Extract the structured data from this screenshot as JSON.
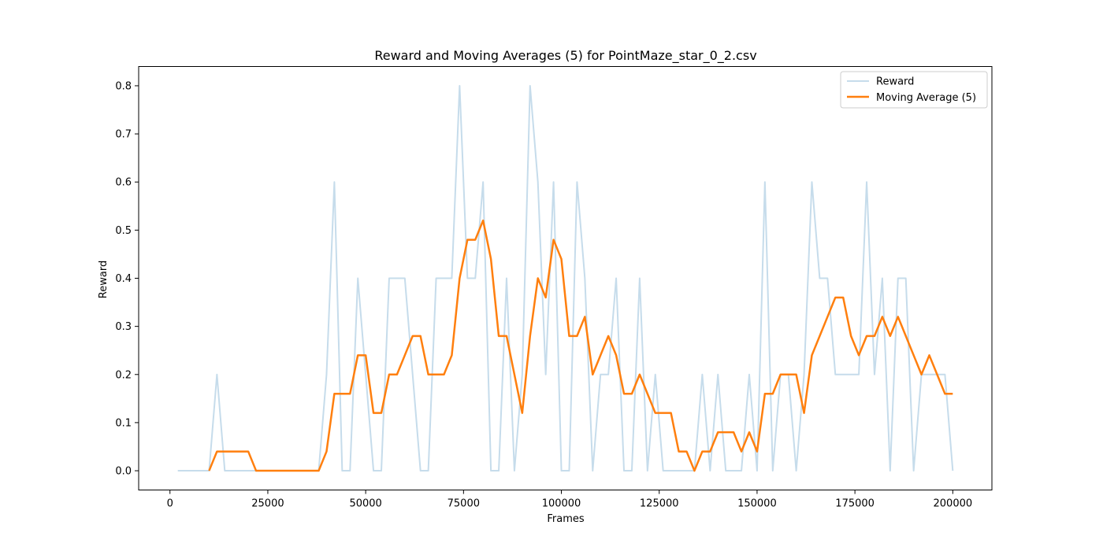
{
  "chart_data": {
    "type": "line",
    "title": "Reward and Moving Averages (5) for PointMaze_star_0_2.csv",
    "xlabel": "Frames",
    "ylabel": "Reward",
    "xlim": [
      -8000,
      210000
    ],
    "ylim": [
      -0.04,
      0.84
    ],
    "xticks": [
      0,
      25000,
      50000,
      75000,
      100000,
      125000,
      150000,
      175000,
      200000
    ],
    "yticks": [
      0.0,
      0.1,
      0.2,
      0.3,
      0.4,
      0.5,
      0.6,
      0.7,
      0.8
    ],
    "legend_position": "top-right",
    "grid": false,
    "series": [
      {
        "name": "Reward",
        "color": "#c6dceb",
        "x": [
          2000,
          4000,
          6000,
          8000,
          10000,
          12000,
          14000,
          16000,
          18000,
          20000,
          22000,
          24000,
          26000,
          28000,
          30000,
          32000,
          34000,
          36000,
          38000,
          40000,
          42000,
          44000,
          46000,
          48000,
          50000,
          52000,
          54000,
          56000,
          58000,
          60000,
          62000,
          64000,
          66000,
          68000,
          70000,
          72000,
          74000,
          76000,
          78000,
          80000,
          82000,
          84000,
          86000,
          88000,
          90000,
          92000,
          94000,
          96000,
          98000,
          100000,
          102000,
          104000,
          106000,
          108000,
          110000,
          112000,
          114000,
          116000,
          118000,
          120000,
          122000,
          124000,
          126000,
          128000,
          130000,
          132000,
          134000,
          136000,
          138000,
          140000,
          142000,
          144000,
          146000,
          148000,
          150000,
          152000,
          154000,
          156000,
          158000,
          160000,
          162000,
          164000,
          166000,
          168000,
          170000,
          172000,
          174000,
          176000,
          178000,
          180000,
          182000,
          184000,
          186000,
          188000,
          190000,
          192000,
          194000,
          196000,
          198000,
          200000
        ],
        "values": [
          0,
          0,
          0,
          0,
          0,
          0.2,
          0,
          0,
          0,
          0,
          0,
          0,
          0,
          0,
          0,
          0,
          0,
          0,
          0,
          0.2,
          0.6,
          0,
          0,
          0.4,
          0.2,
          0,
          0,
          0.4,
          0.4,
          0.4,
          0.2,
          0,
          0,
          0.4,
          0.4,
          0.4,
          0.8,
          0.4,
          0.4,
          0.6,
          0,
          0,
          0.4,
          0,
          0.2,
          0.8,
          0.6,
          0.2,
          0.6,
          0,
          0,
          0.6,
          0.4,
          0,
          0.2,
          0.2,
          0.4,
          0,
          0,
          0.4,
          0,
          0.2,
          0,
          0,
          0,
          0,
          0,
          0.2,
          0,
          0.2,
          0,
          0,
          0,
          0.2,
          0,
          0.6,
          0,
          0.2,
          0.2,
          0,
          0.2,
          0.6,
          0.4,
          0.4,
          0.2,
          0.2,
          0.2,
          0.2,
          0.6,
          0.2,
          0.4,
          0,
          0.4,
          0.4,
          0,
          0.2,
          0.2,
          0.2,
          0.2,
          0
        ]
      },
      {
        "name": "Moving Average (5)",
        "color": "#ff7f0e",
        "x": [
          10000,
          12000,
          14000,
          16000,
          18000,
          20000,
          22000,
          24000,
          26000,
          28000,
          30000,
          32000,
          34000,
          36000,
          38000,
          40000,
          42000,
          44000,
          46000,
          48000,
          50000,
          52000,
          54000,
          56000,
          58000,
          60000,
          62000,
          64000,
          66000,
          68000,
          70000,
          72000,
          74000,
          76000,
          78000,
          80000,
          82000,
          84000,
          86000,
          88000,
          90000,
          92000,
          94000,
          96000,
          98000,
          100000,
          102000,
          104000,
          106000,
          108000,
          110000,
          112000,
          114000,
          116000,
          118000,
          120000,
          122000,
          124000,
          126000,
          128000,
          130000,
          132000,
          134000,
          136000,
          138000,
          140000,
          142000,
          144000,
          146000,
          148000,
          150000,
          152000,
          154000,
          156000,
          158000,
          160000,
          162000,
          164000,
          166000,
          168000,
          170000,
          172000,
          174000,
          176000,
          178000,
          180000,
          182000,
          184000,
          186000,
          188000,
          190000,
          192000,
          194000,
          196000,
          198000,
          200000
        ],
        "values": [
          0,
          0.04,
          0.04,
          0.04,
          0.04,
          0.04,
          0,
          0,
          0,
          0,
          0,
          0,
          0,
          0,
          0,
          0.04,
          0.16,
          0.16,
          0.16,
          0.24,
          0.24,
          0.12,
          0.12,
          0.2,
          0.2,
          0.24,
          0.28,
          0.28,
          0.2,
          0.2,
          0.2,
          0.24,
          0.4,
          0.48,
          0.48,
          0.52,
          0.44,
          0.28,
          0.28,
          0.2,
          0.12,
          0.28,
          0.4,
          0.36,
          0.48,
          0.44,
          0.28,
          0.28,
          0.32,
          0.2,
          0.24,
          0.28,
          0.24,
          0.16,
          0.16,
          0.2,
          0.16,
          0.12,
          0.12,
          0.12,
          0.04,
          0.04,
          0,
          0.04,
          0.04,
          0.08,
          0.08,
          0.08,
          0.04,
          0.08,
          0.04,
          0.16,
          0.16,
          0.2,
          0.2,
          0.2,
          0.12,
          0.24,
          0.28,
          0.32,
          0.36,
          0.36,
          0.28,
          0.24,
          0.28,
          0.28,
          0.32,
          0.28,
          0.32,
          0.28,
          0.24,
          0.2,
          0.24,
          0.2,
          0.16,
          0.16
        ]
      }
    ]
  }
}
